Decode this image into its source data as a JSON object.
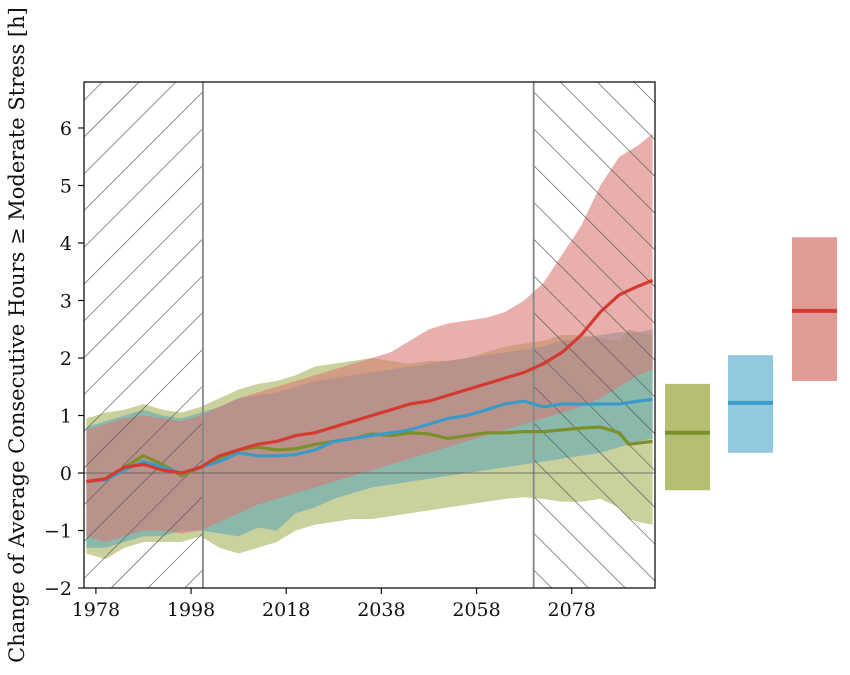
{
  "chart_data": {
    "type": "line",
    "title": "",
    "xlabel": "",
    "ylabel": "Change of Average Consecutive Hours ≥ Moderate Stress [h]",
    "xlim": [
      1975.5,
      2095.5
    ],
    "ylim": [
      -2,
      6.8
    ],
    "x_ticks": [
      1978,
      1998,
      2018,
      2038,
      2058,
      2078
    ],
    "y_ticks": [
      -2,
      -1,
      0,
      1,
      2,
      3,
      4,
      5,
      6
    ],
    "grid": false,
    "zero_line": 0,
    "hatched_periods": [
      [
        1975.5,
        2000.5
      ],
      [
        2070,
        2095.5
      ]
    ],
    "series": [
      {
        "color": "#7b8f2a",
        "band_color": "#a9b35a",
        "x": [
          1976,
          1980,
          1984,
          1988,
          1992,
          1996,
          2000,
          2004,
          2008,
          2012,
          2016,
          2020,
          2024,
          2028,
          2032,
          2036,
          2040,
          2044,
          2048,
          2052,
          2056,
          2060,
          2064,
          2068,
          2072,
          2076,
          2080,
          2084,
          2088,
          2090,
          2092,
          2095
        ],
        "values": [
          -0.15,
          -0.1,
          0.1,
          0.3,
          0.15,
          -0.05,
          0.1,
          0.25,
          0.4,
          0.45,
          0.4,
          0.42,
          0.5,
          0.55,
          0.6,
          0.68,
          0.65,
          0.7,
          0.68,
          0.6,
          0.65,
          0.7,
          0.7,
          0.72,
          0.72,
          0.75,
          0.78,
          0.8,
          0.7,
          0.5,
          0.52,
          0.55
        ],
        "lower": [
          -1.4,
          -1.5,
          -1.3,
          -1.2,
          -1.2,
          -1.2,
          -1.1,
          -1.3,
          -1.4,
          -1.3,
          -1.2,
          -1.0,
          -0.9,
          -0.85,
          -0.8,
          -0.8,
          -0.75,
          -0.7,
          -0.65,
          -0.6,
          -0.55,
          -0.5,
          -0.45,
          -0.42,
          -0.45,
          -0.5,
          -0.5,
          -0.45,
          -0.6,
          -0.8,
          -0.85,
          -0.9
        ],
        "upper": [
          0.95,
          1.05,
          1.1,
          1.2,
          1.1,
          1.05,
          1.15,
          1.3,
          1.45,
          1.55,
          1.6,
          1.7,
          1.85,
          1.9,
          1.95,
          2.0,
          1.95,
          1.9,
          1.95,
          1.95,
          2.0,
          2.1,
          2.2,
          2.25,
          2.3,
          2.4,
          2.4,
          2.35,
          2.3,
          2.5,
          2.45,
          2.4
        ]
      },
      {
        "color": "#3a9bc9",
        "band_color": "#5fa8b8",
        "x": [
          1976,
          1980,
          1984,
          1988,
          1992,
          1996,
          2000,
          2004,
          2008,
          2012,
          2016,
          2020,
          2024,
          2028,
          2032,
          2036,
          2040,
          2044,
          2048,
          2052,
          2056,
          2060,
          2064,
          2068,
          2072,
          2076,
          2080,
          2084,
          2088,
          2092,
          2095
        ],
        "values": [
          -0.15,
          -0.12,
          0.05,
          0.2,
          0.1,
          0.0,
          0.1,
          0.2,
          0.35,
          0.3,
          0.3,
          0.32,
          0.4,
          0.55,
          0.6,
          0.65,
          0.7,
          0.75,
          0.85,
          0.95,
          1.0,
          1.1,
          1.2,
          1.25,
          1.15,
          1.2,
          1.2,
          1.2,
          1.2,
          1.25,
          1.28
        ],
        "lower": [
          -1.3,
          -1.3,
          -1.2,
          -1.1,
          -1.1,
          -1.0,
          -1.0,
          -1.05,
          -1.1,
          -0.95,
          -1.0,
          -0.7,
          -0.6,
          -0.45,
          -0.35,
          -0.25,
          -0.2,
          -0.15,
          -0.1,
          -0.05,
          0.0,
          0.05,
          0.1,
          0.15,
          0.2,
          0.25,
          0.3,
          0.35,
          0.45,
          0.55,
          0.6
        ],
        "upper": [
          0.8,
          0.9,
          1.0,
          1.1,
          1.0,
          0.95,
          1.05,
          1.15,
          1.3,
          1.35,
          1.4,
          1.5,
          1.6,
          1.65,
          1.7,
          1.75,
          1.8,
          1.85,
          1.9,
          1.95,
          2.0,
          2.05,
          2.1,
          2.15,
          2.2,
          2.3,
          2.35,
          2.4,
          2.45,
          2.45,
          2.5
        ]
      },
      {
        "color": "#d43a2f",
        "band_color": "#d97a74",
        "x": [
          1976,
          1980,
          1984,
          1988,
          1992,
          1996,
          2000,
          2004,
          2008,
          2012,
          2016,
          2020,
          2024,
          2028,
          2032,
          2036,
          2040,
          2044,
          2048,
          2052,
          2056,
          2060,
          2064,
          2068,
          2072,
          2076,
          2080,
          2084,
          2088,
          2092,
          2095
        ],
        "values": [
          -0.15,
          -0.1,
          0.1,
          0.15,
          0.05,
          0.0,
          0.1,
          0.3,
          0.4,
          0.5,
          0.55,
          0.65,
          0.7,
          0.8,
          0.9,
          1.0,
          1.1,
          1.2,
          1.25,
          1.35,
          1.45,
          1.55,
          1.65,
          1.75,
          1.9,
          2.1,
          2.4,
          2.8,
          3.1,
          3.25,
          3.35
        ],
        "lower": [
          -1.1,
          -1.2,
          -1.1,
          -1.0,
          -1.0,
          -1.05,
          -1.0,
          -0.85,
          -0.7,
          -0.55,
          -0.45,
          -0.35,
          -0.25,
          -0.15,
          -0.05,
          0.05,
          0.15,
          0.25,
          0.35,
          0.45,
          0.55,
          0.65,
          0.75,
          0.85,
          0.95,
          1.05,
          1.15,
          1.3,
          1.5,
          1.7,
          1.8
        ],
        "upper": [
          0.75,
          0.85,
          0.95,
          1.0,
          0.95,
          0.9,
          1.0,
          1.15,
          1.3,
          1.4,
          1.5,
          1.6,
          1.7,
          1.8,
          1.9,
          2.0,
          2.1,
          2.3,
          2.5,
          2.6,
          2.65,
          2.7,
          2.8,
          3.0,
          3.3,
          3.8,
          4.3,
          5.0,
          5.5,
          5.7,
          5.9
        ]
      }
    ],
    "summary_boxes": [
      {
        "color": "#7b8f2a",
        "fill": "#a9b35a",
        "low": -0.3,
        "high": 1.55,
        "median": 0.7
      },
      {
        "color": "#3a9bc9",
        "fill": "#7fc0d8",
        "low": 0.35,
        "high": 2.05,
        "median": 1.22
      },
      {
        "color": "#d43a2f",
        "fill": "#dc8a85",
        "low": 1.6,
        "high": 4.1,
        "median": 2.82
      }
    ]
  }
}
